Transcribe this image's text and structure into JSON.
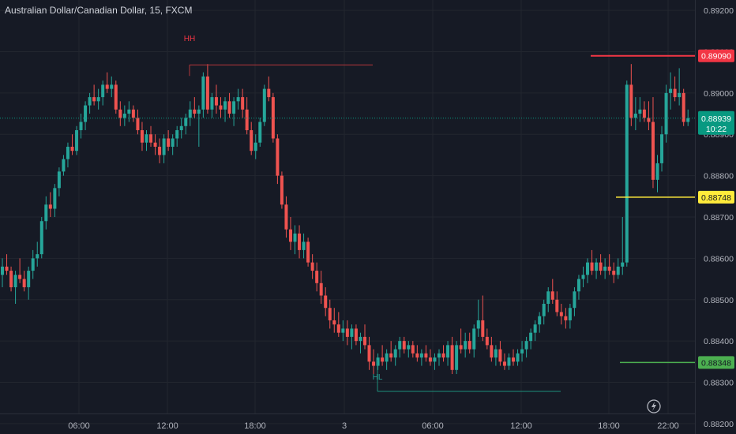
{
  "header": {
    "title": "Australian Dollar/Canadian Dollar, 15, FXCM"
  },
  "colors": {
    "background": "#161a25",
    "up": "#26a69a",
    "down": "#ef5350",
    "grid": "#22262f",
    "current_price": "#089981",
    "resistance": "#f23645",
    "support_mid": "#ffeb3b",
    "support_low": "#4caf50"
  },
  "chart_data": {
    "type": "candlestick",
    "title": "Australian Dollar/Canadian Dollar, 15, FXCM",
    "ylim": [
      0.88175,
      0.89225
    ],
    "y_ticks": [
      "0.89200",
      "0.89100",
      "0.89000",
      "0.88900",
      "0.88800",
      "0.88700",
      "0.88600",
      "0.88500",
      "0.88400",
      "0.88300",
      "0.88200"
    ],
    "x_ticks": [
      "06:00",
      "12:00",
      "18:00",
      "3",
      "06:00",
      "12:00",
      "18:00",
      "22:00"
    ],
    "grid": true,
    "candles": [
      [
        0.8856,
        0.886,
        0.8853,
        0.8858
      ],
      [
        0.8858,
        0.8861,
        0.8856,
        0.8857
      ],
      [
        0.8857,
        0.8858,
        0.8852,
        0.8853
      ],
      [
        0.8853,
        0.8857,
        0.8849,
        0.8856
      ],
      [
        0.8856,
        0.886,
        0.8854,
        0.8855
      ],
      [
        0.8855,
        0.8857,
        0.8852,
        0.8853
      ],
      [
        0.8853,
        0.8858,
        0.885,
        0.8857
      ],
      [
        0.8857,
        0.8862,
        0.8855,
        0.886
      ],
      [
        0.886,
        0.8864,
        0.8858,
        0.8861
      ],
      [
        0.8861,
        0.887,
        0.886,
        0.8869
      ],
      [
        0.8869,
        0.8875,
        0.8867,
        0.8873
      ],
      [
        0.8873,
        0.8876,
        0.887,
        0.8872
      ],
      [
        0.8872,
        0.8878,
        0.887,
        0.8877
      ],
      [
        0.8877,
        0.8882,
        0.8875,
        0.8881
      ],
      [
        0.8881,
        0.8885,
        0.888,
        0.8884
      ],
      [
        0.8884,
        0.8888,
        0.8882,
        0.8887
      ],
      [
        0.8887,
        0.889,
        0.8885,
        0.8886
      ],
      [
        0.8886,
        0.8892,
        0.8885,
        0.8891
      ],
      [
        0.8891,
        0.8895,
        0.8889,
        0.8893
      ],
      [
        0.8893,
        0.8898,
        0.8891,
        0.8897
      ],
      [
        0.8897,
        0.89,
        0.8895,
        0.8899
      ],
      [
        0.8899,
        0.8902,
        0.8897,
        0.8898
      ],
      [
        0.8898,
        0.8901,
        0.8896,
        0.8899
      ],
      [
        0.8899,
        0.8903,
        0.8897,
        0.8902
      ],
      [
        0.8902,
        0.8905,
        0.89,
        0.8901
      ],
      [
        0.8901,
        0.8904,
        0.8899,
        0.8902
      ],
      [
        0.8902,
        0.8903,
        0.8895,
        0.8896
      ],
      [
        0.8896,
        0.8898,
        0.8892,
        0.8894
      ],
      [
        0.8894,
        0.8897,
        0.8892,
        0.8895
      ],
      [
        0.8895,
        0.8898,
        0.8893,
        0.8896
      ],
      [
        0.8896,
        0.8897,
        0.8893,
        0.8894
      ],
      [
        0.8894,
        0.8896,
        0.889,
        0.8891
      ],
      [
        0.8891,
        0.8893,
        0.8886,
        0.8888
      ],
      [
        0.8888,
        0.8891,
        0.8886,
        0.889
      ],
      [
        0.889,
        0.8892,
        0.8887,
        0.8888
      ],
      [
        0.8888,
        0.889,
        0.8885,
        0.8887
      ],
      [
        0.8887,
        0.8889,
        0.8883,
        0.8885
      ],
      [
        0.8885,
        0.889,
        0.8883,
        0.8889
      ],
      [
        0.8889,
        0.8891,
        0.8886,
        0.8887
      ],
      [
        0.8887,
        0.889,
        0.8885,
        0.8889
      ],
      [
        0.8889,
        0.8892,
        0.8887,
        0.8891
      ],
      [
        0.8891,
        0.8894,
        0.8889,
        0.8892
      ],
      [
        0.8892,
        0.8895,
        0.889,
        0.8894
      ],
      [
        0.8894,
        0.8898,
        0.8892,
        0.8896
      ],
      [
        0.8896,
        0.8899,
        0.8894,
        0.8895
      ],
      [
        0.8895,
        0.8897,
        0.8887,
        0.8896
      ],
      [
        0.8896,
        0.8905,
        0.8894,
        0.8904
      ],
      [
        0.8904,
        0.8907,
        0.8895,
        0.8896
      ],
      [
        0.8896,
        0.89,
        0.8894,
        0.8899
      ],
      [
        0.8899,
        0.8902,
        0.8895,
        0.8897
      ],
      [
        0.8897,
        0.8899,
        0.8894,
        0.8896
      ],
      [
        0.8896,
        0.8899,
        0.8893,
        0.8898
      ],
      [
        0.8898,
        0.89,
        0.8894,
        0.8895
      ],
      [
        0.8895,
        0.8899,
        0.8892,
        0.8898
      ],
      [
        0.8898,
        0.8901,
        0.8896,
        0.8899
      ],
      [
        0.8899,
        0.8901,
        0.8894,
        0.8896
      ],
      [
        0.8896,
        0.8899,
        0.889,
        0.8891
      ],
      [
        0.8891,
        0.8893,
        0.8885,
        0.8886
      ],
      [
        0.8886,
        0.889,
        0.8884,
        0.8888
      ],
      [
        0.8888,
        0.8894,
        0.8887,
        0.8893
      ],
      [
        0.8893,
        0.8902,
        0.8892,
        0.8901
      ],
      [
        0.8901,
        0.8904,
        0.8898,
        0.8899
      ],
      [
        0.8899,
        0.89,
        0.8888,
        0.8889
      ],
      [
        0.8889,
        0.889,
        0.8878,
        0.888
      ],
      [
        0.888,
        0.8881,
        0.8872,
        0.8873
      ],
      [
        0.8873,
        0.8875,
        0.8865,
        0.8867
      ],
      [
        0.8867,
        0.887,
        0.8862,
        0.8864
      ],
      [
        0.8864,
        0.8868,
        0.8861,
        0.8866
      ],
      [
        0.8866,
        0.8868,
        0.886,
        0.8862
      ],
      [
        0.8862,
        0.8866,
        0.886,
        0.8864
      ],
      [
        0.8864,
        0.8865,
        0.8858,
        0.8859
      ],
      [
        0.8859,
        0.8861,
        0.8855,
        0.8857
      ],
      [
        0.8857,
        0.8859,
        0.8852,
        0.8854
      ],
      [
        0.8854,
        0.8857,
        0.8849,
        0.8851
      ],
      [
        0.8851,
        0.8853,
        0.8846,
        0.8848
      ],
      [
        0.8848,
        0.885,
        0.8843,
        0.8845
      ],
      [
        0.8845,
        0.8848,
        0.8842,
        0.8844
      ],
      [
        0.8844,
        0.8847,
        0.8841,
        0.8842
      ],
      [
        0.8842,
        0.8845,
        0.884,
        0.8843
      ],
      [
        0.8843,
        0.8845,
        0.8839,
        0.8841
      ],
      [
        0.8841,
        0.8844,
        0.8838,
        0.8843
      ],
      [
        0.8843,
        0.8844,
        0.8839,
        0.884
      ],
      [
        0.884,
        0.8842,
        0.8837,
        0.8841
      ],
      [
        0.8841,
        0.8844,
        0.8838,
        0.8839
      ],
      [
        0.8839,
        0.8841,
        0.8833,
        0.8835
      ],
      [
        0.8835,
        0.8838,
        0.8832,
        0.8834
      ],
      [
        0.8834,
        0.8837,
        0.8833,
        0.8836
      ],
      [
        0.8836,
        0.8839,
        0.8834,
        0.8835
      ],
      [
        0.8835,
        0.8838,
        0.8833,
        0.8837
      ],
      [
        0.8837,
        0.884,
        0.8835,
        0.8836
      ],
      [
        0.8836,
        0.8839,
        0.8834,
        0.8838
      ],
      [
        0.8838,
        0.8841,
        0.8836,
        0.884
      ],
      [
        0.884,
        0.8841,
        0.8837,
        0.8838
      ],
      [
        0.8838,
        0.884,
        0.8836,
        0.8839
      ],
      [
        0.8839,
        0.884,
        0.8836,
        0.8837
      ],
      [
        0.8837,
        0.8839,
        0.8835,
        0.8836
      ],
      [
        0.8836,
        0.8838,
        0.8834,
        0.8837
      ],
      [
        0.8837,
        0.8839,
        0.8835,
        0.8836
      ],
      [
        0.8836,
        0.8838,
        0.8834,
        0.8835
      ],
      [
        0.8835,
        0.8837,
        0.8833,
        0.8836
      ],
      [
        0.8836,
        0.8838,
        0.8834,
        0.8837
      ],
      [
        0.8837,
        0.8839,
        0.8835,
        0.8836
      ],
      [
        0.8836,
        0.884,
        0.8834,
        0.8839
      ],
      [
        0.8839,
        0.8841,
        0.8832,
        0.8833
      ],
      [
        0.8833,
        0.884,
        0.8832,
        0.8839
      ],
      [
        0.8839,
        0.8843,
        0.8837,
        0.8838
      ],
      [
        0.8838,
        0.8842,
        0.8836,
        0.884
      ],
      [
        0.884,
        0.8842,
        0.8837,
        0.8838
      ],
      [
        0.8838,
        0.8844,
        0.8836,
        0.8843
      ],
      [
        0.8843,
        0.885,
        0.8841,
        0.8845
      ],
      [
        0.8845,
        0.8851,
        0.884,
        0.8841
      ],
      [
        0.8841,
        0.8843,
        0.8838,
        0.8839
      ],
      [
        0.8839,
        0.8841,
        0.8835,
        0.8836
      ],
      [
        0.8836,
        0.8839,
        0.8834,
        0.8838
      ],
      [
        0.8838,
        0.884,
        0.8834,
        0.8835
      ],
      [
        0.8835,
        0.8837,
        0.8833,
        0.8834
      ],
      [
        0.8834,
        0.8837,
        0.8833,
        0.8836
      ],
      [
        0.8836,
        0.8838,
        0.8834,
        0.8835
      ],
      [
        0.8835,
        0.8838,
        0.8834,
        0.8837
      ],
      [
        0.8837,
        0.884,
        0.8835,
        0.8838
      ],
      [
        0.8838,
        0.8841,
        0.8836,
        0.884
      ],
      [
        0.884,
        0.8843,
        0.8838,
        0.8842
      ],
      [
        0.8842,
        0.8845,
        0.884,
        0.8844
      ],
      [
        0.8844,
        0.8847,
        0.8842,
        0.8846
      ],
      [
        0.8846,
        0.885,
        0.8844,
        0.8849
      ],
      [
        0.8849,
        0.8853,
        0.8847,
        0.8852
      ],
      [
        0.8852,
        0.8855,
        0.8849,
        0.885
      ],
      [
        0.885,
        0.8852,
        0.8846,
        0.8847
      ],
      [
        0.8847,
        0.8849,
        0.8844,
        0.8846
      ],
      [
        0.8846,
        0.8848,
        0.8843,
        0.8845
      ],
      [
        0.8845,
        0.8849,
        0.8843,
        0.8848
      ],
      [
        0.8848,
        0.8853,
        0.8846,
        0.8852
      ],
      [
        0.8852,
        0.8856,
        0.885,
        0.8855
      ],
      [
        0.8855,
        0.8858,
        0.8853,
        0.8856
      ],
      [
        0.8856,
        0.886,
        0.8854,
        0.8859
      ],
      [
        0.8859,
        0.8862,
        0.8856,
        0.8857
      ],
      [
        0.8857,
        0.886,
        0.8855,
        0.8859
      ],
      [
        0.8859,
        0.8861,
        0.8856,
        0.8857
      ],
      [
        0.8857,
        0.886,
        0.8855,
        0.8858
      ],
      [
        0.8858,
        0.8861,
        0.8856,
        0.8857
      ],
      [
        0.8857,
        0.8859,
        0.8854,
        0.8856
      ],
      [
        0.8856,
        0.886,
        0.8855,
        0.8858
      ],
      [
        0.8858,
        0.887,
        0.8856,
        0.8859
      ],
      [
        0.8859,
        0.8903,
        0.8858,
        0.8902
      ],
      [
        0.8902,
        0.8907,
        0.8892,
        0.8894
      ],
      [
        0.8894,
        0.8899,
        0.8891,
        0.8895
      ],
      [
        0.8895,
        0.8899,
        0.8893,
        0.8896
      ],
      [
        0.8896,
        0.8898,
        0.8893,
        0.8894
      ],
      [
        0.8894,
        0.8898,
        0.8891,
        0.8893
      ],
      [
        0.8893,
        0.8899,
        0.8877,
        0.8879
      ],
      [
        0.8879,
        0.8885,
        0.8876,
        0.8883
      ],
      [
        0.8883,
        0.8892,
        0.8881,
        0.889
      ],
      [
        0.889,
        0.8902,
        0.8888,
        0.89
      ],
      [
        0.89,
        0.8905,
        0.8896,
        0.8901
      ],
      [
        0.8901,
        0.8904,
        0.8898,
        0.8899
      ],
      [
        0.8899,
        0.8906,
        0.8897,
        0.89
      ],
      [
        0.89,
        0.8901,
        0.8892,
        0.8893
      ],
      [
        0.8893,
        0.8896,
        0.8892,
        0.88939
      ]
    ],
    "current_price": {
      "price": 0.88939,
      "label": "0.88939",
      "countdown": "10:22"
    },
    "levels": [
      {
        "name": "resistance",
        "price": 0.8909,
        "label": "0.89090"
      },
      {
        "name": "support-mid",
        "price": 0.88748,
        "label": "0.88748"
      },
      {
        "name": "support-low",
        "price": 0.88348,
        "label": "0.88348"
      },
      {
        "name": "hh",
        "price": 0.89068
      },
      {
        "name": "hl",
        "price": 0.88278
      }
    ],
    "annotations": [
      {
        "text": "HH"
      },
      {
        "text": "HL"
      }
    ]
  }
}
